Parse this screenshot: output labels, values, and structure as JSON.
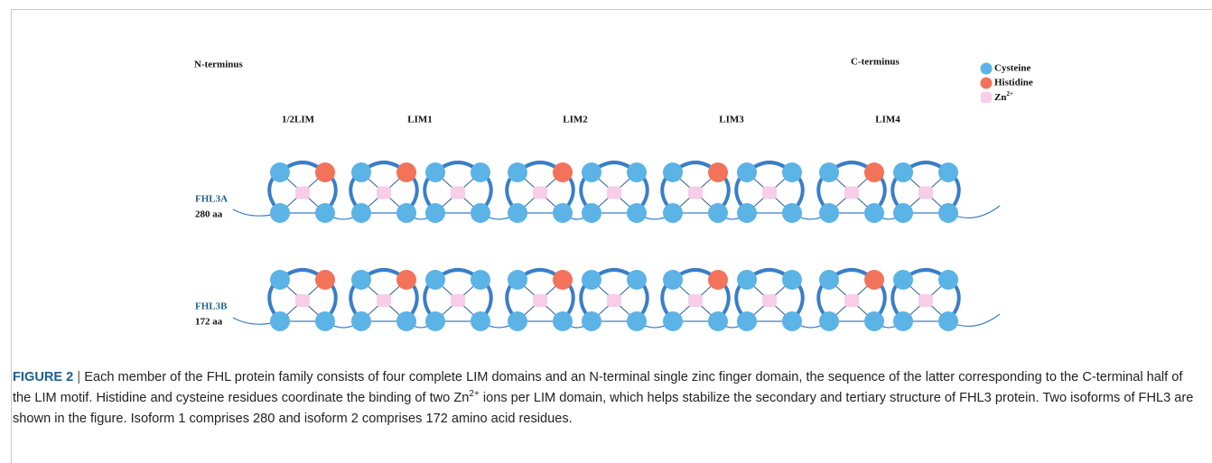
{
  "figure": {
    "n_terminus": "N-terminus",
    "c_terminus": "C-terminus",
    "legend": [
      {
        "label": "Cysteine"
      },
      {
        "label": "Histidine"
      },
      {
        "label": "Zn",
        "superscript": "2+"
      }
    ],
    "domains": [
      "1/2LIM",
      "LIM1",
      "LIM2",
      "LIM3",
      "LIM4"
    ],
    "isoforms": [
      {
        "name": "FHL3A",
        "length": "280 aa"
      },
      {
        "name": "FHL3B",
        "length": "172 aa"
      }
    ]
  },
  "caption": {
    "label": "FIGURE 2",
    "separator": "|",
    "text_1": "Each member of the FHL protein family consists of four complete LIM domains and an N-terminal single zinc finger domain, the sequence of the latter corresponding to the C-terminal half of the LIM motif. Histidine and cysteine residues coordinate the binding of two Zn",
    "superscript": "2+",
    "text_2": " ions per LIM domain, which helps stabilize the secondary and tertiary structure of FHL3 protein. Two isoforms of FHL3 are shown in the figure. Isoform 1 comprises 280 and isoform 2 comprises 172 amino acid residues."
  }
}
